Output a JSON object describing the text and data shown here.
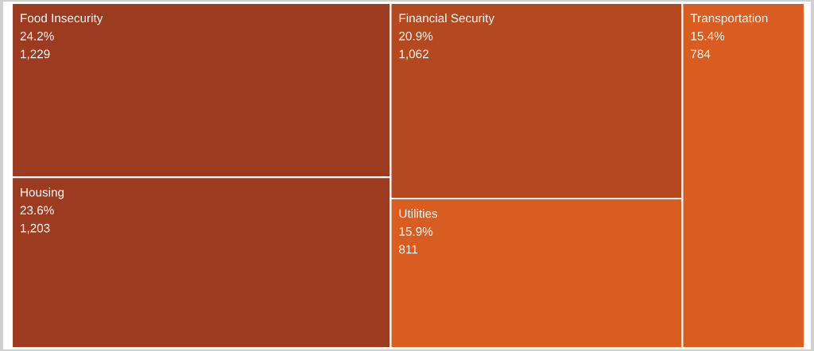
{
  "chart_data": {
    "type": "other",
    "categories": [
      "Food Insecurity",
      "Housing",
      "Financial Security",
      "Utilities",
      "Transportation"
    ],
    "values": [
      1229,
      1203,
      1062,
      811,
      784
    ],
    "value_labels": [
      "24.2%\n1,229",
      "23.6%\n1,203",
      "20.9%\n1,062",
      "15.9%\n811",
      "15.4%\n784"
    ],
    "colors": [
      "#9c3b20",
      "#9c3b20",
      "#b44920",
      "#d95d20",
      "#d95d20"
    ]
  }
}
